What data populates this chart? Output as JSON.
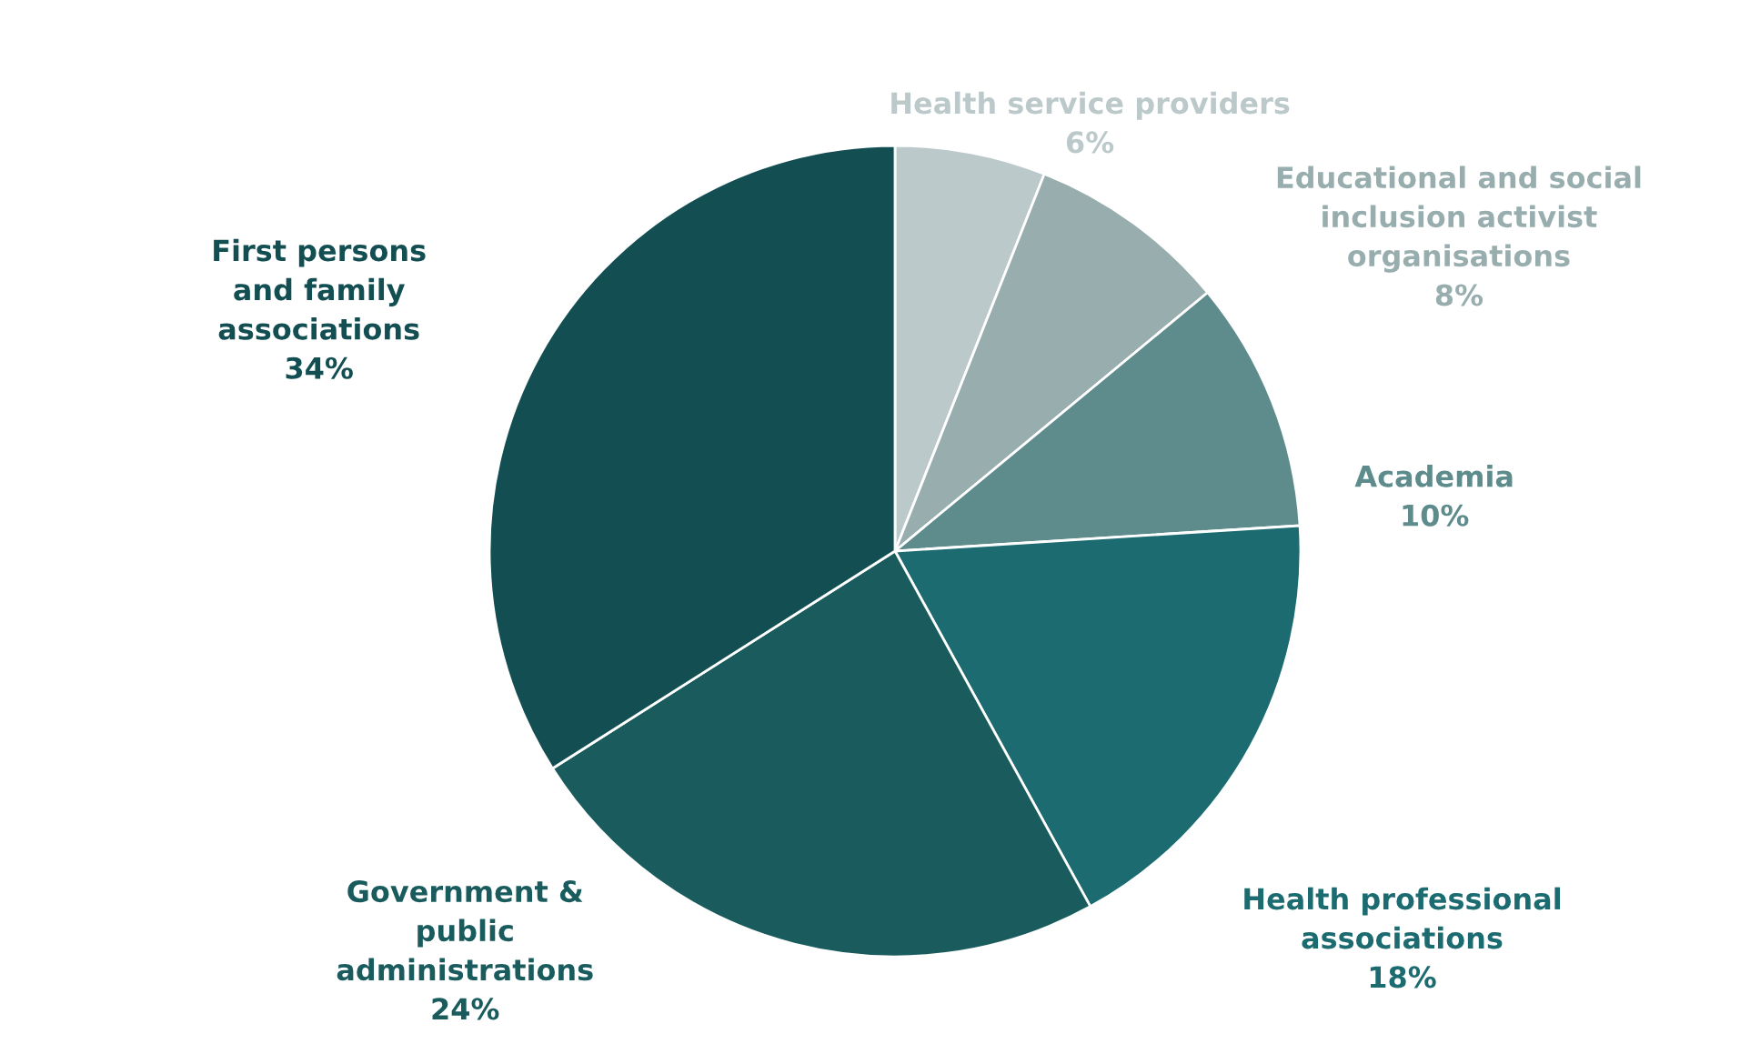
{
  "chart_data": {
    "type": "pie",
    "categories": [
      "Health service providers",
      "Educational and social\ninclusion activist\norganisations",
      "Academia",
      "Health professional\nassociations",
      "Government &\npublic\nadministrations",
      "First persons\nand family\nassociations"
    ],
    "values": [
      6,
      8,
      10,
      18,
      24,
      34
    ],
    "colors": [
      "#bcc9ca",
      "#98adae",
      "#5e8b8c",
      "#1b6b70",
      "#1a5c5e",
      "#134f52"
    ],
    "value_labels": [
      "6%",
      "8%",
      "10%",
      "18%",
      "24%",
      "34%"
    ],
    "legend": false
  }
}
